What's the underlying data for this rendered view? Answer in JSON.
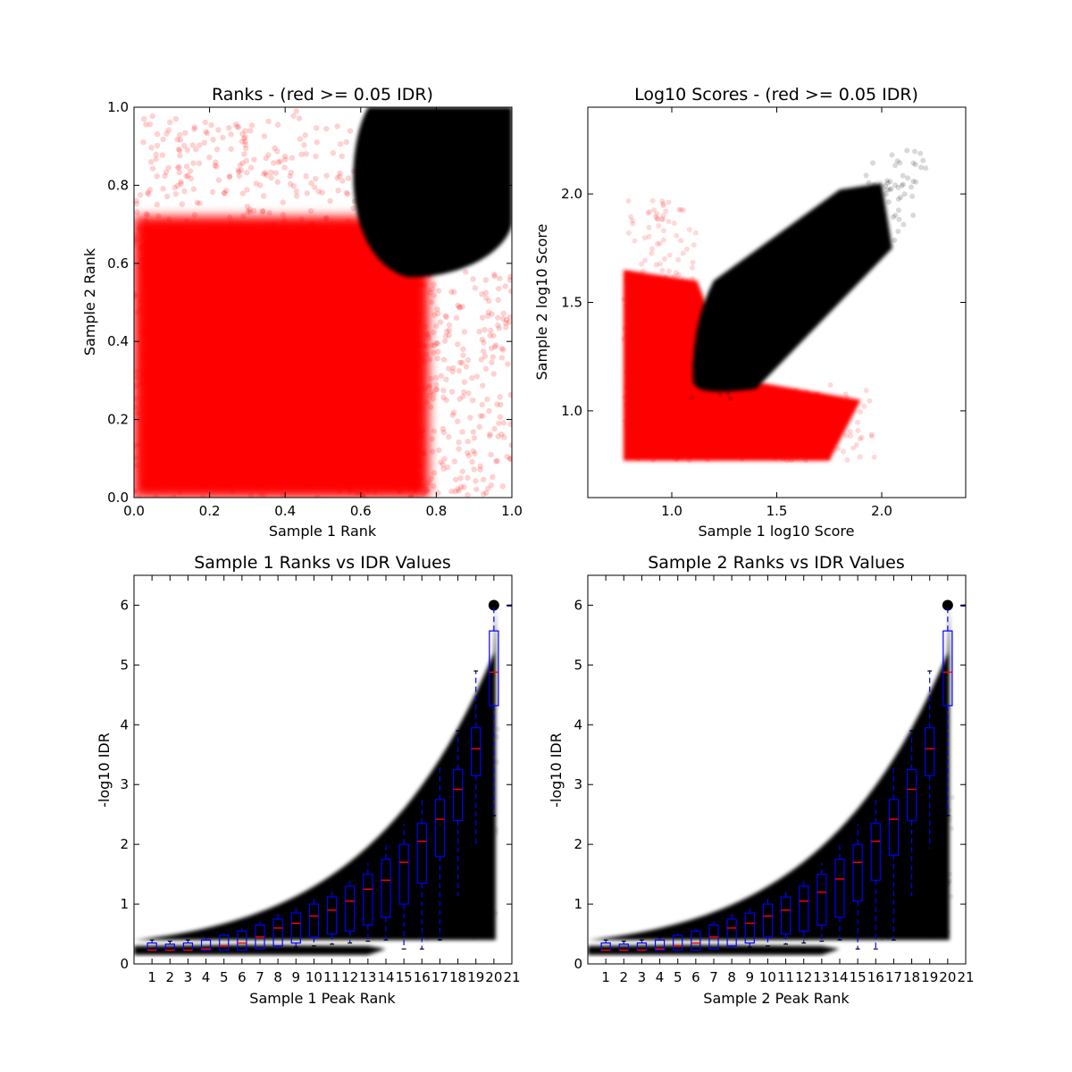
{
  "chart_data": [
    {
      "type": "scatter",
      "title": "Ranks - (red >= 0.05 IDR)",
      "xlabel": "Sample 1 Rank",
      "ylabel": "Sample 2 Rank",
      "xlim": [
        0.0,
        1.0
      ],
      "ylim": [
        0.0,
        1.0
      ],
      "xticks": [
        "0.0",
        "0.2",
        "0.4",
        "0.6",
        "0.8",
        "1.0"
      ],
      "yticks": [
        "0.0",
        "0.2",
        "0.4",
        "0.6",
        "0.8",
        "1.0"
      ],
      "colors": {
        "low_idr": "#ff0000",
        "high_idr": "#000000"
      },
      "regions": {
        "black_cluster": {
          "x_min": 0.56,
          "x_max": 1.0,
          "y_min": 0.56,
          "y_max": 1.0,
          "center": [
            0.85,
            0.85
          ]
        },
        "red_fill": {
          "x_min": 0.0,
          "x_max": 1.0,
          "y_min": 0.0,
          "y_max": 1.0
        }
      }
    },
    {
      "type": "scatter",
      "title": "Log10 Scores - (red >= 0.05 IDR)",
      "xlabel": "Sample 1 log10 Score",
      "ylabel": "Sample 2 log10 Score",
      "xlim": [
        0.6,
        2.4
      ],
      "ylim": [
        0.6,
        2.4
      ],
      "xticks": [
        "1.0",
        "1.5",
        "2.0"
      ],
      "yticks": [
        "1.0",
        "1.5",
        "2.0"
      ],
      "colors": {
        "low_idr": "#ff0000",
        "high_idr": "#000000"
      },
      "regions": {
        "min_score": 0.77,
        "black_diagonal": {
          "from": [
            1.15,
            1.15
          ],
          "to": [
            2.05,
            2.05
          ],
          "min_x": 1.1,
          "min_y": 1.08
        },
        "red_corner": {
          "x_max": 1.1,
          "y_max": 1.1
        }
      }
    },
    {
      "type": "box",
      "title": "Sample 1 Ranks vs IDR Values",
      "xlabel": "Sample 1 Peak Rank",
      "ylabel": "-log10 IDR",
      "xlim": [
        0,
        21
      ],
      "ylim": [
        0,
        6.5
      ],
      "categories": [
        "1",
        "2",
        "3",
        "4",
        "5",
        "6",
        "7",
        "8",
        "9",
        "10",
        "11",
        "12",
        "13",
        "14",
        "15",
        "16",
        "17",
        "18",
        "19",
        "20",
        "21"
      ],
      "yticks": [
        "0",
        "1",
        "2",
        "3",
        "4",
        "5",
        "6"
      ],
      "box_color": "#0000ff",
      "median_color": "#ff0000",
      "boxes": [
        {
          "q1": 0.23,
          "median": 0.23,
          "q3": 0.35,
          "whisker_low": 0.23,
          "whisker_high": 0.4
        },
        {
          "q1": 0.23,
          "median": 0.23,
          "q3": 0.33,
          "whisker_low": 0.23,
          "whisker_high": 0.38
        },
        {
          "q1": 0.23,
          "median": 0.23,
          "q3": 0.35,
          "whisker_low": 0.23,
          "whisker_high": 0.4
        },
        {
          "q1": 0.23,
          "median": 0.25,
          "q3": 0.4,
          "whisker_low": 0.23,
          "whisker_high": 0.45
        },
        {
          "q1": 0.23,
          "median": 0.3,
          "q3": 0.48,
          "whisker_low": 0.23,
          "whisker_high": 0.52
        },
        {
          "q1": 0.23,
          "median": 0.35,
          "q3": 0.55,
          "whisker_low": 0.23,
          "whisker_high": 0.6
        },
        {
          "q1": 0.25,
          "median": 0.45,
          "q3": 0.65,
          "whisker_low": 0.23,
          "whisker_high": 0.72
        },
        {
          "q1": 0.3,
          "median": 0.6,
          "q3": 0.75,
          "whisker_low": 0.25,
          "whisker_high": 0.85
        },
        {
          "q1": 0.35,
          "median": 0.68,
          "q3": 0.85,
          "whisker_low": 0.28,
          "whisker_high": 0.95
        },
        {
          "q1": 0.45,
          "median": 0.8,
          "q3": 1.0,
          "whisker_low": 0.3,
          "whisker_high": 1.1
        },
        {
          "q1": 0.5,
          "median": 0.9,
          "q3": 1.12,
          "whisker_low": 0.33,
          "whisker_high": 1.25
        },
        {
          "q1": 0.55,
          "median": 1.05,
          "q3": 1.3,
          "whisker_low": 0.35,
          "whisker_high": 1.45
        },
        {
          "q1": 0.65,
          "median": 1.25,
          "q3": 1.5,
          "whisker_low": 0.38,
          "whisker_high": 1.7
        },
        {
          "q1": 0.78,
          "median": 1.4,
          "q3": 1.75,
          "whisker_low": 0.4,
          "whisker_high": 2.0
        },
        {
          "q1": 1.0,
          "median": 1.7,
          "q3": 2.0,
          "whisker_low": 0.25,
          "whisker_high": 2.35
        },
        {
          "q1": 1.35,
          "median": 2.05,
          "q3": 2.35,
          "whisker_low": 0.25,
          "whisker_high": 2.75
        },
        {
          "q1": 1.8,
          "median": 2.42,
          "q3": 2.75,
          "whisker_low": 0.4,
          "whisker_high": 3.3
        },
        {
          "q1": 2.4,
          "median": 2.92,
          "q3": 3.25,
          "whisker_low": 1.12,
          "whisker_high": 3.9
        },
        {
          "q1": 3.15,
          "median": 3.6,
          "q3": 3.95,
          "whisker_low": 1.95,
          "whisker_high": 4.9
        },
        {
          "q1": 4.32,
          "median": 4.88,
          "q3": 5.57,
          "whisker_low": 2.48,
          "whisker_high": 6.0
        },
        {
          "q1": 6.0,
          "median": 6.0,
          "q3": 6.0,
          "whisker_low": 6.0,
          "whisker_high": 6.0
        }
      ]
    },
    {
      "type": "box",
      "title": "Sample 2 Ranks vs IDR Values",
      "xlabel": "Sample 2 Peak Rank",
      "ylabel": "-log10 IDR",
      "xlim": [
        0,
        21
      ],
      "ylim": [
        0,
        6.5
      ],
      "categories": [
        "1",
        "2",
        "3",
        "4",
        "5",
        "6",
        "7",
        "8",
        "9",
        "10",
        "11",
        "12",
        "13",
        "14",
        "15",
        "16",
        "17",
        "18",
        "19",
        "20",
        "21"
      ],
      "yticks": [
        "0",
        "1",
        "2",
        "3",
        "4",
        "5",
        "6"
      ],
      "box_color": "#0000ff",
      "median_color": "#ff0000",
      "boxes": [
        {
          "q1": 0.23,
          "median": 0.23,
          "q3": 0.35,
          "whisker_low": 0.23,
          "whisker_high": 0.4
        },
        {
          "q1": 0.23,
          "median": 0.23,
          "q3": 0.33,
          "whisker_low": 0.23,
          "whisker_high": 0.38
        },
        {
          "q1": 0.23,
          "median": 0.23,
          "q3": 0.35,
          "whisker_low": 0.23,
          "whisker_high": 0.4
        },
        {
          "q1": 0.23,
          "median": 0.25,
          "q3": 0.4,
          "whisker_low": 0.23,
          "whisker_high": 0.45
        },
        {
          "q1": 0.23,
          "median": 0.3,
          "q3": 0.48,
          "whisker_low": 0.23,
          "whisker_high": 0.52
        },
        {
          "q1": 0.23,
          "median": 0.35,
          "q3": 0.55,
          "whisker_low": 0.23,
          "whisker_high": 0.6
        },
        {
          "q1": 0.25,
          "median": 0.45,
          "q3": 0.65,
          "whisker_low": 0.23,
          "whisker_high": 0.72
        },
        {
          "q1": 0.3,
          "median": 0.6,
          "q3": 0.75,
          "whisker_low": 0.25,
          "whisker_high": 0.85
        },
        {
          "q1": 0.35,
          "median": 0.68,
          "q3": 0.85,
          "whisker_low": 0.28,
          "whisker_high": 0.95
        },
        {
          "q1": 0.45,
          "median": 0.8,
          "q3": 1.0,
          "whisker_low": 0.3,
          "whisker_high": 1.1
        },
        {
          "q1": 0.5,
          "median": 0.9,
          "q3": 1.12,
          "whisker_low": 0.33,
          "whisker_high": 1.25
        },
        {
          "q1": 0.55,
          "median": 1.05,
          "q3": 1.3,
          "whisker_low": 0.35,
          "whisker_high": 1.45
        },
        {
          "q1": 0.65,
          "median": 1.2,
          "q3": 1.5,
          "whisker_low": 0.38,
          "whisker_high": 1.7
        },
        {
          "q1": 0.78,
          "median": 1.42,
          "q3": 1.75,
          "whisker_low": 0.4,
          "whisker_high": 2.0
        },
        {
          "q1": 1.05,
          "median": 1.7,
          "q3": 2.0,
          "whisker_low": 0.25,
          "whisker_high": 2.35
        },
        {
          "q1": 1.4,
          "median": 2.05,
          "q3": 2.35,
          "whisker_low": 0.25,
          "whisker_high": 2.75
        },
        {
          "q1": 1.82,
          "median": 2.42,
          "q3": 2.75,
          "whisker_low": 0.4,
          "whisker_high": 3.3
        },
        {
          "q1": 2.4,
          "median": 2.92,
          "q3": 3.25,
          "whisker_low": 1.12,
          "whisker_high": 3.9
        },
        {
          "q1": 3.15,
          "median": 3.6,
          "q3": 3.95,
          "whisker_low": 1.92,
          "whisker_high": 4.9
        },
        {
          "q1": 4.32,
          "median": 4.88,
          "q3": 5.57,
          "whisker_low": 2.48,
          "whisker_high": 6.0
        },
        {
          "q1": 6.0,
          "median": 6.0,
          "q3": 6.0,
          "whisker_low": 6.0,
          "whisker_high": 6.0
        }
      ]
    }
  ]
}
